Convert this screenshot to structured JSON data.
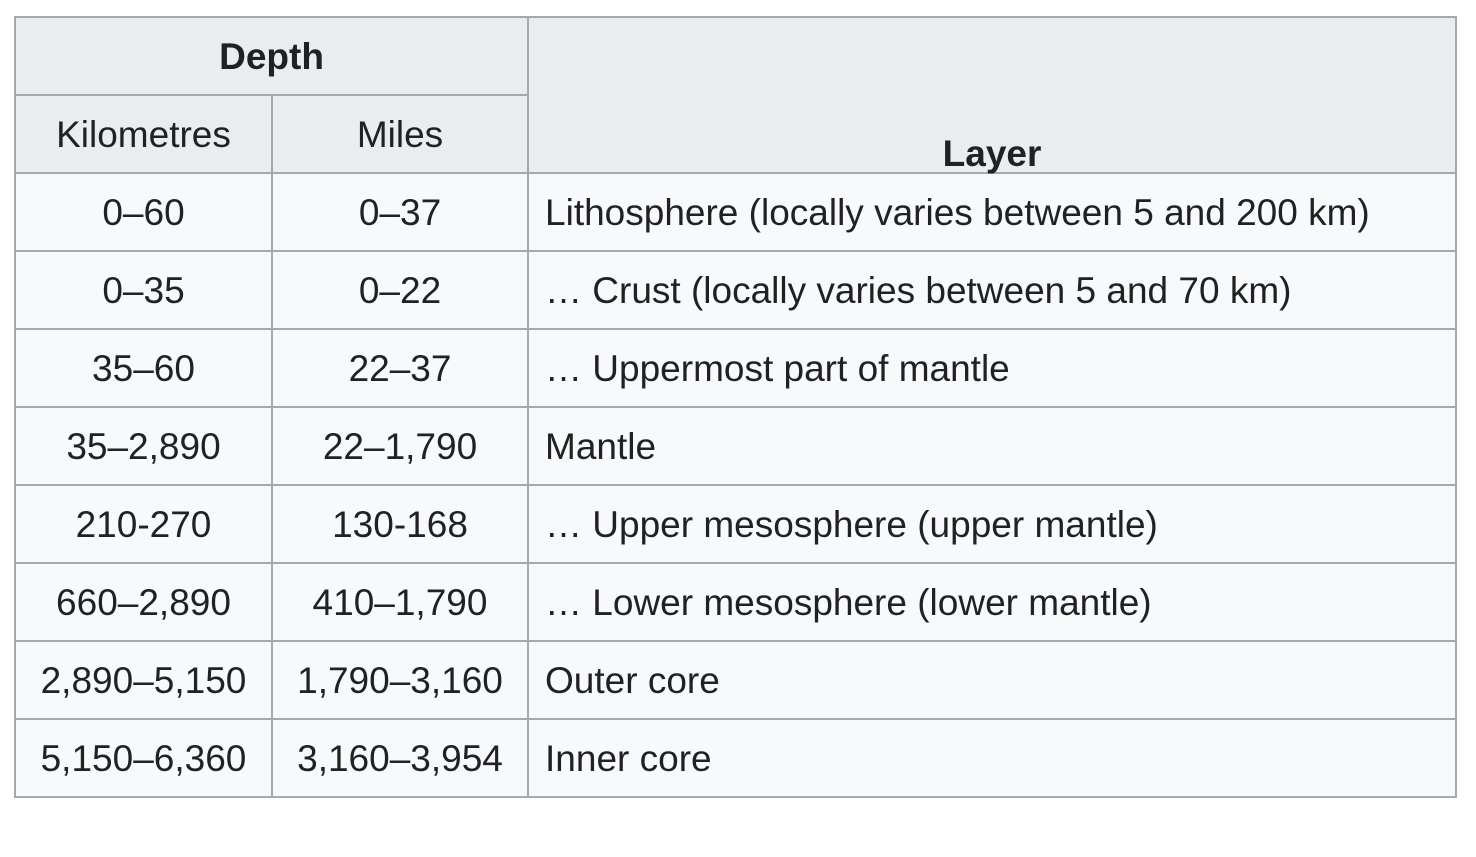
{
  "header": {
    "depth": "Depth",
    "layer": "Layer",
    "kilometres": "Kilometres",
    "miles": "Miles"
  },
  "rows": [
    {
      "km": "0–60",
      "mi": "0–37",
      "layer": "Lithosphere (locally varies between 5 and 200 km)"
    },
    {
      "km": "0–35",
      "mi": "0–22",
      "layer": "… Crust (locally varies between 5 and 70 km)"
    },
    {
      "km": "35–60",
      "mi": "22–37",
      "layer": "… Uppermost part of mantle"
    },
    {
      "km": "35–2,890",
      "mi": "22–1,790",
      "layer": "Mantle"
    },
    {
      "km": "210-270",
      "mi": "130-168",
      "layer": "… Upper mesosphere (upper mantle)"
    },
    {
      "km": "660–2,890",
      "mi": "410–1,790",
      "layer": "… Lower mesosphere (lower mantle)"
    },
    {
      "km": "2,890–5,150",
      "mi": "1,790–3,160",
      "layer": "Outer core"
    },
    {
      "km": "5,150–6,360",
      "mi": "3,160–3,954",
      "layer": "Inner core"
    }
  ]
}
